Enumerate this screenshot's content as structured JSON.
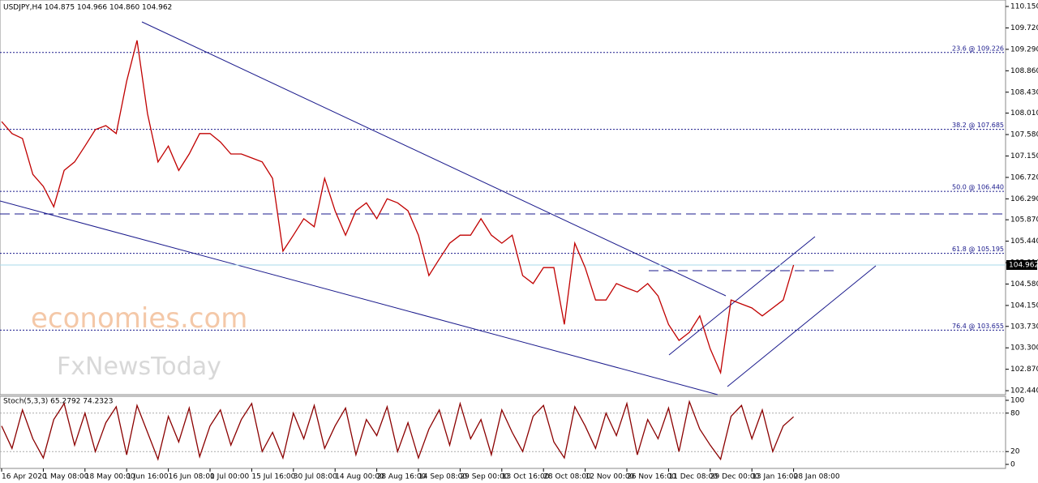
{
  "chart_data": [
    {
      "type": "line",
      "title": "USDJPY,H4  104.875 104.966 104.860 104.962",
      "color": "#c00000",
      "categories": [
        "16 Apr 2020",
        null,
        null,
        null,
        "1 May 08:00",
        null,
        null,
        null,
        "18 May 00:00",
        null,
        null,
        null,
        "1 Jun 16:00",
        null,
        null,
        null,
        "16 Jun 08:00",
        null,
        null,
        null,
        "1 Jul 00:00",
        null,
        null,
        null,
        "15 Jul 16:00",
        null,
        null,
        null,
        "30 Jul 08:00",
        null,
        null,
        null,
        "14 Aug 00:00",
        null,
        null,
        null,
        "28 Aug 16:00",
        null,
        null,
        null,
        "14 Sep 08:00",
        null,
        null,
        null,
        "29 Sep 00:00",
        null,
        null,
        null,
        "13 Oct 16:00",
        null,
        null,
        null,
        "28 Oct 08:00",
        null,
        null,
        null,
        "12 Nov 00:00",
        null,
        null,
        null,
        "26 Nov 16:00",
        null,
        null,
        null,
        "11 Dec 08:00",
        null,
        null,
        null,
        "29 Dec 00:00",
        null,
        null,
        null,
        "13 Jan 16:00",
        null,
        null,
        null,
        "28 Jan 08:00"
      ],
      "values": [
        107.84,
        107.6,
        107.5,
        106.78,
        106.54,
        106.13,
        106.86,
        107.03,
        107.35,
        107.68,
        107.76,
        107.6,
        108.65,
        109.47,
        108.0,
        107.03,
        107.35,
        106.86,
        107.19,
        107.6,
        107.6,
        107.43,
        107.19,
        107.19,
        107.11,
        107.03,
        106.7,
        105.24,
        105.56,
        105.89,
        105.73,
        106.7,
        106.05,
        105.56,
        106.05,
        106.21,
        105.89,
        106.29,
        106.21,
        106.05,
        105.56,
        104.75,
        105.08,
        105.4,
        105.56,
        105.56,
        105.89,
        105.56,
        105.4,
        105.56,
        104.75,
        104.59,
        104.91,
        104.91,
        103.77,
        105.4,
        104.91,
        104.26,
        104.26,
        104.59,
        104.5,
        104.42,
        104.59,
        104.34,
        103.77,
        103.45,
        103.61,
        103.94,
        103.28,
        102.8,
        104.26,
        104.18,
        104.1,
        103.94,
        104.1,
        104.26,
        104.962
      ],
      "ylim": [
        102.36,
        110.28
      ],
      "yticks": [
        {
          "value": 110.15,
          "label": "110.150"
        },
        {
          "value": 109.72,
          "label": "109.720"
        },
        {
          "value": 109.29,
          "label": "109.290"
        },
        {
          "value": 108.86,
          "label": "108.860"
        },
        {
          "value": 108.43,
          "label": "108.430"
        },
        {
          "value": 108.01,
          "label": "108.010"
        },
        {
          "value": 107.58,
          "label": "107.580"
        },
        {
          "value": 107.15,
          "label": "107.150"
        },
        {
          "value": 106.72,
          "label": "106.720"
        },
        {
          "value": 106.29,
          "label": "106.290"
        },
        {
          "value": 105.87,
          "label": "105.870"
        },
        {
          "value": 105.44,
          "label": "105.440"
        },
        {
          "value": 105.01,
          "label": "105.010"
        },
        {
          "value": 104.58,
          "label": "104.580"
        },
        {
          "value": 104.15,
          "label": "104.150"
        },
        {
          "value": 103.73,
          "label": "103.730"
        },
        {
          "value": 103.3,
          "label": "103.300"
        },
        {
          "value": 102.87,
          "label": "102.870"
        },
        {
          "value": 102.44,
          "label": "102.440"
        }
      ],
      "levels": [
        {
          "value": 109.226,
          "label": "23.6 @ 109.226"
        },
        {
          "value": 107.685,
          "label": "38.2 @ 107.685"
        },
        {
          "value": 106.44,
          "label": "50.0 @ 106.440"
        },
        {
          "value": 105.195,
          "label": "61.8 @ 105.195"
        },
        {
          "value": 103.655,
          "label": "76.4 @ 103.655"
        }
      ],
      "last_price": 104.962,
      "watermark": [
        "economies.com",
        "FxNewsToday"
      ]
    },
    {
      "type": "line",
      "title": "Stoch(5,3,3) 65.2792 74.2323",
      "color": "#8b0000",
      "values": [
        60,
        25,
        85,
        40,
        10,
        70,
        95,
        30,
        80,
        20,
        65,
        90,
        15,
        92,
        50,
        8,
        75,
        35,
        88,
        12,
        60,
        85,
        30,
        70,
        95,
        20,
        50,
        10,
        80,
        40,
        92,
        25,
        60,
        88,
        15,
        70,
        45,
        90,
        20,
        65,
        10,
        55,
        85,
        30,
        95,
        40,
        70,
        15,
        85,
        50,
        20,
        75,
        92,
        35,
        10,
        90,
        60,
        25,
        80,
        45,
        95,
        15,
        70,
        40,
        88,
        20,
        98,
        55,
        30,
        8,
        75,
        92,
        40,
        85,
        20,
        60,
        74.2323
      ],
      "ylim": [
        -6.3,
        106.3
      ],
      "yticks": [
        100,
        80,
        20,
        0
      ]
    }
  ]
}
